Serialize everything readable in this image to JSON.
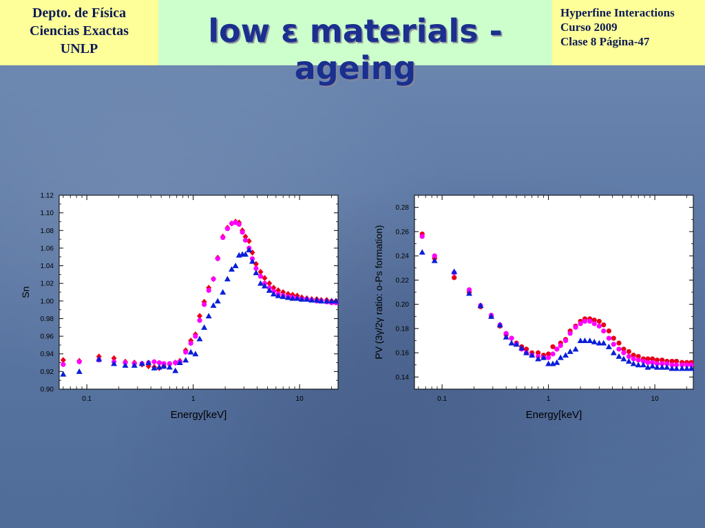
{
  "header": {
    "left": [
      "Depto. de Física",
      "Ciencias Exactas",
      "UNLP"
    ],
    "title": "low ε materials - ageing",
    "right": [
      "Hyperfine Interactions",
      "Curso 2009",
      "Clase 8  Página-47"
    ]
  },
  "colors": {
    "red": "#e8001a",
    "magenta": "#ff00ff",
    "blue": "#0a1fd8"
  },
  "chart_data": [
    {
      "type": "scatter",
      "xscale": "log",
      "xlim": [
        0.055,
        23
      ],
      "ylim": [
        0.9,
        1.12
      ],
      "xticks": [
        0.1,
        1,
        10
      ],
      "xticklabels": [
        "0.1",
        "1",
        "10"
      ],
      "yticks": [
        0.9,
        0.92,
        0.94,
        0.96,
        0.98,
        1.0,
        1.02,
        1.04,
        1.06,
        1.08,
        1.1,
        1.12
      ],
      "yticklabels": [
        "0.90",
        "0.92",
        "0.94",
        "0.96",
        "0.98",
        "1.00",
        "1.02",
        "1.04",
        "1.06",
        "1.08",
        "1.10",
        "1.12"
      ],
      "xlabel": "Energy[keV]",
      "ylabel": "Sn",
      "series": [
        {
          "marker": "diamond",
          "color": "#e8001a",
          "x": [
            0.06,
            0.085,
            0.13,
            0.18,
            0.23,
            0.28,
            0.33,
            0.38,
            0.43,
            0.48,
            0.53,
            0.6,
            0.68,
            0.75,
            0.85,
            0.95,
            1.05,
            1.15,
            1.27,
            1.4,
            1.55,
            1.7,
            1.9,
            2.1,
            2.3,
            2.5,
            2.7,
            2.9,
            3.1,
            3.35,
            3.6,
            3.9,
            4.3,
            4.7,
            5.2,
            5.7,
            6.3,
            7,
            7.8,
            8.6,
            9.5,
            10.5,
            11.7,
            13,
            14.5,
            16,
            18,
            20,
            22
          ],
          "y": [
            0.933,
            0.932,
            0.937,
            0.935,
            0.931,
            0.93,
            0.928,
            0.926,
            0.925,
            0.924,
            0.926,
            0.928,
            0.93,
            0.932,
            0.944,
            0.955,
            0.962,
            0.983,
            0.999,
            1.015,
            1.025,
            1.049,
            1.073,
            1.083,
            1.088,
            1.09,
            1.089,
            1.08,
            1.073,
            1.068,
            1.055,
            1.042,
            1.033,
            1.026,
            1.02,
            1.015,
            1.012,
            1.01,
            1.008,
            1.007,
            1.006,
            1.004,
            1.003,
            1.002,
            1.002,
            1.001,
            1.001,
            1.0,
            1.0
          ]
        },
        {
          "marker": "circle",
          "color": "#ff00ff",
          "x": [
            0.06,
            0.085,
            0.13,
            0.18,
            0.23,
            0.28,
            0.33,
            0.38,
            0.43,
            0.48,
            0.53,
            0.6,
            0.68,
            0.75,
            0.85,
            0.95,
            1.05,
            1.15,
            1.27,
            1.4,
            1.55,
            1.7,
            1.9,
            2.1,
            2.3,
            2.5,
            2.7,
            2.9,
            3.1,
            3.35,
            3.6,
            3.9,
            4.3,
            4.7,
            5.2,
            5.7,
            6.3,
            7,
            7.8,
            8.6,
            9.5,
            10.5,
            11.7,
            13,
            14.5,
            16,
            18,
            20,
            22
          ],
          "y": [
            0.928,
            0.931,
            0.933,
            0.931,
            0.93,
            0.929,
            0.929,
            0.93,
            0.931,
            0.93,
            0.929,
            0.929,
            0.93,
            0.931,
            0.942,
            0.952,
            0.96,
            0.978,
            0.996,
            1.012,
            1.025,
            1.048,
            1.072,
            1.082,
            1.088,
            1.089,
            1.087,
            1.078,
            1.069,
            1.06,
            1.048,
            1.037,
            1.028,
            1.02,
            1.015,
            1.011,
            1.008,
            1.006,
            1.005,
            1.004,
            1.003,
            1.002,
            1.002,
            1.001,
            1.0,
            1.0,
            0.999,
            0.998,
            0.998
          ]
        },
        {
          "marker": "triangle",
          "color": "#0a1fd8",
          "x": [
            0.06,
            0.085,
            0.13,
            0.18,
            0.23,
            0.28,
            0.33,
            0.38,
            0.43,
            0.48,
            0.53,
            0.6,
            0.68,
            0.75,
            0.85,
            0.95,
            1.05,
            1.15,
            1.27,
            1.4,
            1.55,
            1.7,
            1.9,
            2.1,
            2.3,
            2.5,
            2.7,
            2.9,
            3.1,
            3.35,
            3.6,
            3.9,
            4.3,
            4.7,
            5.2,
            5.7,
            6.3,
            7,
            7.8,
            8.6,
            9.5,
            10.5,
            11.7,
            13,
            14.5,
            16,
            18,
            20,
            22
          ],
          "y": [
            0.917,
            0.92,
            0.934,
            0.929,
            0.927,
            0.927,
            0.929,
            0.93,
            0.924,
            0.925,
            0.926,
            0.925,
            0.921,
            0.93,
            0.933,
            0.942,
            0.94,
            0.957,
            0.97,
            0.983,
            0.995,
            1.0,
            1.01,
            1.025,
            1.036,
            1.04,
            1.052,
            1.053,
            1.053,
            1.058,
            1.045,
            1.032,
            1.02,
            1.017,
            1.012,
            1.008,
            1.006,
            1.005,
            1.004,
            1.003,
            1.003,
            1.002,
            1.002,
            1.001,
            1.001,
            1.0,
            1.0,
            1.0,
            1.0
          ]
        }
      ]
    },
    {
      "type": "scatter",
      "xscale": "log",
      "xlim": [
        0.055,
        23
      ],
      "ylim": [
        0.13,
        0.29
      ],
      "xticks": [
        0.1,
        1,
        10
      ],
      "xticklabels": [
        "0.1",
        "1",
        "10"
      ],
      "yticks": [
        0.14,
        0.16,
        0.18,
        0.2,
        0.22,
        0.24,
        0.26,
        0.28
      ],
      "yticklabels": [
        "0.14",
        "0.16",
        "0.18",
        "0.20",
        "0.22",
        "0.24",
        "0.26",
        "0.28"
      ],
      "xlabel": "Energy[keV]",
      "ylabel": "PV (3γ/2γ ratio: o-Ps formation)",
      "series": [
        {
          "marker": "circle",
          "color": "#e8001a",
          "x": [
            0.065,
            0.085,
            0.13,
            0.18,
            0.23,
            0.29,
            0.35,
            0.4,
            0.45,
            0.5,
            0.56,
            0.62,
            0.7,
            0.8,
            0.9,
            1.0,
            1.1,
            1.2,
            1.3,
            1.45,
            1.6,
            1.8,
            2.0,
            2.2,
            2.45,
            2.7,
            3.0,
            3.3,
            3.7,
            4.1,
            4.6,
            5.1,
            5.7,
            6.3,
            7.0,
            7.8,
            8.6,
            9.5,
            10.5,
            11.7,
            13,
            14.5,
            16,
            18,
            20,
            22
          ],
          "y": [
            0.258,
            0.238,
            0.222,
            0.21,
            0.198,
            0.19,
            0.182,
            0.175,
            0.172,
            0.168,
            0.165,
            0.163,
            0.16,
            0.16,
            0.158,
            0.159,
            0.165,
            0.163,
            0.168,
            0.171,
            0.178,
            0.182,
            0.186,
            0.188,
            0.188,
            0.187,
            0.186,
            0.183,
            0.178,
            0.172,
            0.168,
            0.163,
            0.161,
            0.158,
            0.157,
            0.155,
            0.155,
            0.155,
            0.154,
            0.154,
            0.153,
            0.153,
            0.153,
            0.152,
            0.152,
            0.152
          ]
        },
        {
          "marker": "circle",
          "color": "#ff00ff",
          "x": [
            0.065,
            0.085,
            0.13,
            0.18,
            0.23,
            0.29,
            0.35,
            0.4,
            0.45,
            0.5,
            0.56,
            0.62,
            0.7,
            0.8,
            0.9,
            1.0,
            1.1,
            1.2,
            1.3,
            1.45,
            1.6,
            1.8,
            2.0,
            2.2,
            2.45,
            2.7,
            3.0,
            3.3,
            3.7,
            4.1,
            4.6,
            5.1,
            5.7,
            6.3,
            7.0,
            7.8,
            8.6,
            9.5,
            10.5,
            11.7,
            13,
            14.5,
            16,
            18,
            20,
            22
          ],
          "y": [
            0.256,
            0.24,
            0.226,
            0.212,
            0.199,
            0.191,
            0.183,
            0.176,
            0.172,
            0.167,
            0.163,
            0.16,
            0.158,
            0.157,
            0.156,
            0.156,
            0.159,
            0.163,
            0.166,
            0.17,
            0.176,
            0.181,
            0.184,
            0.186,
            0.186,
            0.184,
            0.182,
            0.178,
            0.172,
            0.167,
            0.163,
            0.16,
            0.157,
            0.155,
            0.154,
            0.153,
            0.152,
            0.152,
            0.151,
            0.151,
            0.151,
            0.15,
            0.15,
            0.15,
            0.15,
            0.15
          ]
        },
        {
          "marker": "triangle",
          "color": "#0a1fd8",
          "x": [
            0.065,
            0.085,
            0.13,
            0.18,
            0.23,
            0.29,
            0.35,
            0.4,
            0.45,
            0.5,
            0.56,
            0.62,
            0.7,
            0.8,
            0.9,
            1.0,
            1.1,
            1.2,
            1.3,
            1.45,
            1.6,
            1.8,
            2.0,
            2.2,
            2.45,
            2.7,
            3.0,
            3.3,
            3.7,
            4.1,
            4.6,
            5.1,
            5.7,
            6.3,
            7.0,
            7.8,
            8.6,
            9.5,
            10.5,
            11.7,
            13,
            14.5,
            16,
            18,
            20,
            22
          ],
          "y": [
            0.243,
            0.236,
            0.227,
            0.209,
            0.199,
            0.19,
            0.183,
            0.173,
            0.168,
            0.167,
            0.164,
            0.16,
            0.158,
            0.155,
            0.156,
            0.151,
            0.151,
            0.152,
            0.156,
            0.158,
            0.161,
            0.163,
            0.17,
            0.17,
            0.17,
            0.169,
            0.168,
            0.168,
            0.165,
            0.16,
            0.157,
            0.155,
            0.153,
            0.151,
            0.15,
            0.15,
            0.148,
            0.149,
            0.148,
            0.148,
            0.148,
            0.147,
            0.147,
            0.147,
            0.147,
            0.147
          ]
        }
      ]
    }
  ]
}
